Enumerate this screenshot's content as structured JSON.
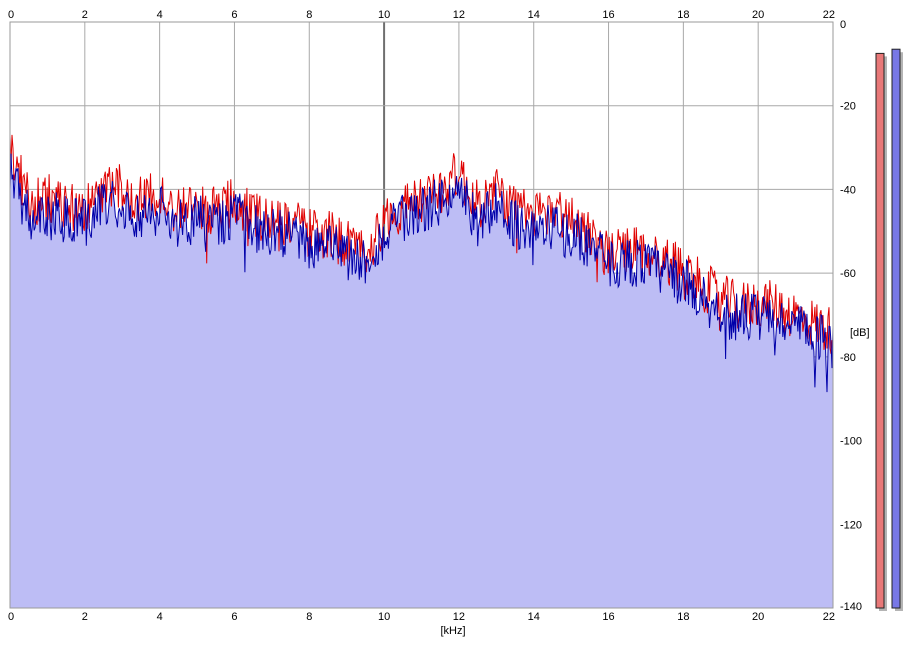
{
  "colors": {
    "background": "#ffffff",
    "grid": "#a8a8a8",
    "grid_major": "#6f6f6f",
    "fill": "#bdbdf5",
    "left_channel": "#e00000",
    "right_channel": "#0000aa",
    "meter_left": "#e87878",
    "meter_right": "#7878e6",
    "meter_shadow": "#b4b4b4"
  },
  "chart_data": {
    "type": "line",
    "xlabel": "[kHz]",
    "ylabel": "[dB]",
    "xlim": [
      0,
      22
    ],
    "ylim": [
      -140,
      0
    ],
    "x_ticks": [
      0,
      2,
      4,
      6,
      8,
      10,
      12,
      14,
      16,
      18,
      20,
      22
    ],
    "x_tick_labels": [
      "0",
      "2",
      "4",
      "6",
      "8",
      "10",
      "12",
      "14",
      "16",
      "18",
      "20",
      "22"
    ],
    "y_ticks": [
      0,
      -20,
      -40,
      -60,
      -80,
      -100,
      -120,
      -140
    ],
    "y_tick_labels": [
      "0",
      "-20",
      "-40",
      "-60",
      "-80",
      "-100",
      "-120",
      "-140"
    ],
    "grid": true,
    "series": [
      {
        "channel": "left",
        "x": [
          0,
          0.5,
          1,
          1.5,
          2,
          2.5,
          3,
          3.5,
          4,
          4.5,
          5,
          5.5,
          6,
          6.5,
          7,
          7.5,
          8,
          8.5,
          9,
          9.5,
          10,
          10.5,
          11,
          11.5,
          12,
          12.5,
          13,
          13.5,
          14,
          14.5,
          15,
          15.5,
          16,
          16.5,
          17,
          17.5,
          18,
          18.5,
          19,
          19.5,
          20,
          20.5,
          21,
          21.5,
          22
        ],
        "values": [
          -30,
          -43,
          -42,
          -44,
          -45,
          -39,
          -40,
          -43,
          -41,
          -45,
          -44,
          -45,
          -43,
          -46,
          -47,
          -48,
          -50,
          -51,
          -53,
          -55,
          -48,
          -44,
          -43,
          -40,
          -36,
          -44,
          -40,
          -45,
          -46,
          -45,
          -47,
          -50,
          -56,
          -54,
          -55,
          -57,
          -59,
          -63,
          -66,
          -68,
          -67,
          -68,
          -70,
          -72,
          -74
        ]
      },
      {
        "channel": "right",
        "x": [
          0,
          0.5,
          1,
          1.5,
          2,
          2.5,
          3,
          3.5,
          4,
          4.5,
          5,
          5.5,
          6,
          6.5,
          7,
          7.5,
          8,
          8.5,
          9,
          9.5,
          10,
          10.5,
          11,
          11.5,
          12,
          12.5,
          13,
          13.5,
          14,
          14.5,
          15,
          15.5,
          16,
          16.5,
          17,
          17.5,
          18,
          18.5,
          19,
          19.5,
          20,
          20.5,
          21,
          21.5,
          22
        ],
        "values": [
          -35,
          -47,
          -46,
          -47,
          -48,
          -43,
          -44,
          -46,
          -45,
          -48,
          -47,
          -48,
          -46,
          -49,
          -50,
          -51,
          -53,
          -54,
          -56,
          -57,
          -51,
          -47,
          -45,
          -43,
          -40,
          -48,
          -44,
          -48,
          -50,
          -49,
          -51,
          -53,
          -58,
          -57,
          -58,
          -60,
          -62,
          -66,
          -69,
          -71,
          -70,
          -71,
          -73,
          -75,
          -77
        ]
      }
    ],
    "level_meters": [
      {
        "channel": "left",
        "level_db": -7.5
      },
      {
        "channel": "right",
        "level_db": -6.5
      }
    ]
  }
}
